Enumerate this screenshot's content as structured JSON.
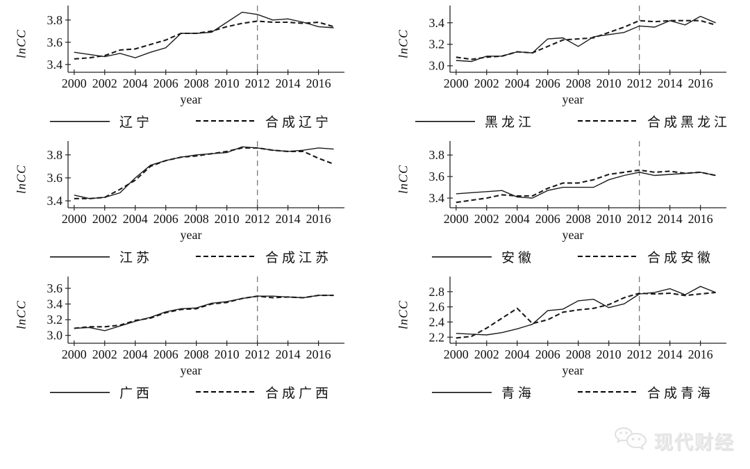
{
  "page": {
    "background": "#ffffff"
  },
  "watermark": {
    "text": "现代财经",
    "icon": "wechat-bubbles-icon",
    "color": "#e7e7e7"
  },
  "chart_data": [
    {
      "id": "liaoning",
      "type": "line",
      "xlabel": "year",
      "ylabel": "lnCC",
      "x": [
        2000,
        2001,
        2002,
        2003,
        2004,
        2005,
        2006,
        2007,
        2008,
        2009,
        2010,
        2011,
        2012,
        2013,
        2014,
        2015,
        2016,
        2017
      ],
      "xticks": [
        2000,
        2002,
        2004,
        2006,
        2008,
        2010,
        2012,
        2014,
        2016
      ],
      "yticks": [
        3.4,
        3.6,
        3.8
      ],
      "xlim": [
        1999.6,
        2017.7
      ],
      "ylim": [
        3.33,
        3.93
      ],
      "vline_x": 2012,
      "grid": false,
      "legend_position": "bottom",
      "series": [
        {
          "name": "辽宁",
          "style": "solid",
          "values": [
            3.51,
            3.49,
            3.47,
            3.5,
            3.46,
            3.51,
            3.55,
            3.68,
            3.68,
            3.69,
            3.78,
            3.87,
            3.85,
            3.8,
            3.81,
            3.78,
            3.74,
            3.73
          ]
        },
        {
          "name": "合成辽宁",
          "style": "dashed",
          "values": [
            3.45,
            3.46,
            3.48,
            3.53,
            3.54,
            3.58,
            3.62,
            3.68,
            3.68,
            3.7,
            3.74,
            3.77,
            3.79,
            3.78,
            3.78,
            3.77,
            3.78,
            3.74
          ]
        }
      ]
    },
    {
      "id": "heilongjiang",
      "type": "line",
      "xlabel": "year",
      "ylabel": "lnCC",
      "x": [
        2000,
        2001,
        2002,
        2003,
        2004,
        2005,
        2006,
        2007,
        2008,
        2009,
        2010,
        2011,
        2012,
        2013,
        2014,
        2015,
        2016,
        2017
      ],
      "xticks": [
        2000,
        2002,
        2004,
        2006,
        2008,
        2010,
        2012,
        2014,
        2016
      ],
      "yticks": [
        3.0,
        3.2,
        3.4
      ],
      "xlim": [
        1999.6,
        2017.7
      ],
      "ylim": [
        2.94,
        3.56
      ],
      "vline_x": 2012,
      "grid": false,
      "legend_position": "bottom",
      "series": [
        {
          "name": "黑龙江",
          "style": "solid",
          "values": [
            3.05,
            3.04,
            3.09,
            3.09,
            3.13,
            3.12,
            3.25,
            3.26,
            3.18,
            3.27,
            3.29,
            3.31,
            3.37,
            3.36,
            3.42,
            3.38,
            3.46,
            3.4
          ]
        },
        {
          "name": "合成黑龙江",
          "style": "dashed",
          "values": [
            3.08,
            3.06,
            3.08,
            3.09,
            3.13,
            3.12,
            3.18,
            3.24,
            3.25,
            3.26,
            3.31,
            3.36,
            3.42,
            3.41,
            3.42,
            3.42,
            3.42,
            3.38
          ]
        }
      ]
    },
    {
      "id": "jiangsu",
      "type": "line",
      "xlabel": "year",
      "ylabel": "lnCC",
      "x": [
        2000,
        2001,
        2002,
        2003,
        2004,
        2005,
        2006,
        2007,
        2008,
        2009,
        2010,
        2011,
        2012,
        2013,
        2014,
        2015,
        2016,
        2017
      ],
      "xticks": [
        2000,
        2002,
        2004,
        2006,
        2008,
        2010,
        2012,
        2014,
        2016
      ],
      "yticks": [
        3.4,
        3.6,
        3.8
      ],
      "xlim": [
        1999.6,
        2017.7
      ],
      "ylim": [
        3.34,
        3.92
      ],
      "vline_x": 2012,
      "grid": false,
      "legend_position": "bottom",
      "series": [
        {
          "name": "江苏",
          "style": "solid",
          "values": [
            3.45,
            3.42,
            3.43,
            3.47,
            3.6,
            3.71,
            3.75,
            3.78,
            3.8,
            3.81,
            3.82,
            3.87,
            3.86,
            3.84,
            3.83,
            3.84,
            3.86,
            3.85
          ]
        },
        {
          "name": "合成江苏",
          "style": "dashed",
          "values": [
            3.42,
            3.42,
            3.43,
            3.5,
            3.58,
            3.7,
            3.75,
            3.78,
            3.79,
            3.81,
            3.83,
            3.86,
            3.86,
            3.84,
            3.83,
            3.83,
            3.77,
            3.72
          ]
        }
      ]
    },
    {
      "id": "anhui",
      "type": "line",
      "xlabel": "year",
      "ylabel": "lnCC",
      "x": [
        2000,
        2001,
        2002,
        2003,
        2004,
        2005,
        2006,
        2007,
        2008,
        2009,
        2010,
        2011,
        2012,
        2013,
        2014,
        2015,
        2016,
        2017
      ],
      "xticks": [
        2000,
        2002,
        2004,
        2006,
        2008,
        2010,
        2012,
        2014,
        2016
      ],
      "yticks": [
        3.4,
        3.6,
        3.8
      ],
      "xlim": [
        1999.6,
        2017.7
      ],
      "ylim": [
        3.31,
        3.93
      ],
      "vline_x": 2012,
      "grid": false,
      "legend_position": "bottom",
      "series": [
        {
          "name": "安徽",
          "style": "solid",
          "values": [
            3.44,
            3.45,
            3.46,
            3.47,
            3.41,
            3.4,
            3.47,
            3.5,
            3.5,
            3.5,
            3.57,
            3.61,
            3.64,
            3.61,
            3.62,
            3.63,
            3.64,
            3.61
          ]
        },
        {
          "name": "合成安徽",
          "style": "dashed",
          "values": [
            3.36,
            3.38,
            3.4,
            3.43,
            3.42,
            3.42,
            3.49,
            3.54,
            3.54,
            3.57,
            3.62,
            3.64,
            3.66,
            3.64,
            3.65,
            3.63,
            3.64,
            3.61
          ]
        }
      ]
    },
    {
      "id": "guangxi",
      "type": "line",
      "xlabel": "year",
      "ylabel": "lnCC",
      "x": [
        2000,
        2001,
        2002,
        2003,
        2004,
        2005,
        2006,
        2007,
        2008,
        2009,
        2010,
        2011,
        2012,
        2013,
        2014,
        2015,
        2016,
        2017
      ],
      "xticks": [
        2000,
        2002,
        2004,
        2006,
        2008,
        2010,
        2012,
        2014,
        2016
      ],
      "yticks": [
        3.0,
        3.2,
        3.4,
        3.6
      ],
      "xlim": [
        1999.6,
        2017.7
      ],
      "ylim": [
        2.9,
        3.75
      ],
      "vline_x": 2012,
      "grid": false,
      "legend_position": "bottom",
      "series": [
        {
          "name": "广西",
          "style": "solid",
          "values": [
            3.09,
            3.1,
            3.06,
            3.12,
            3.18,
            3.23,
            3.3,
            3.34,
            3.35,
            3.41,
            3.43,
            3.47,
            3.5,
            3.5,
            3.49,
            3.48,
            3.51,
            3.51
          ]
        },
        {
          "name": "合成广西",
          "style": "dashed",
          "values": [
            3.09,
            3.11,
            3.11,
            3.13,
            3.19,
            3.22,
            3.29,
            3.33,
            3.34,
            3.4,
            3.42,
            3.47,
            3.5,
            3.48,
            3.49,
            3.48,
            3.51,
            3.51
          ]
        }
      ]
    },
    {
      "id": "qinghai",
      "type": "line",
      "xlabel": "year",
      "ylabel": "lnCC",
      "x": [
        2000,
        2001,
        2002,
        2003,
        2004,
        2005,
        2006,
        2007,
        2008,
        2009,
        2010,
        2011,
        2012,
        2013,
        2014,
        2015,
        2016,
        2017
      ],
      "xticks": [
        2000,
        2002,
        2004,
        2006,
        2008,
        2010,
        2012,
        2014,
        2016
      ],
      "yticks": [
        2.2,
        2.4,
        2.6,
        2.8
      ],
      "xlim": [
        1999.6,
        2017.7
      ],
      "ylim": [
        2.12,
        3.0
      ],
      "vline_x": 2012,
      "grid": false,
      "legend_position": "bottom",
      "series": [
        {
          "name": "青海",
          "style": "solid",
          "values": [
            2.25,
            2.24,
            2.23,
            2.26,
            2.31,
            2.37,
            2.55,
            2.57,
            2.68,
            2.7,
            2.59,
            2.64,
            2.77,
            2.79,
            2.84,
            2.76,
            2.87,
            2.79
          ]
        },
        {
          "name": "合成青海",
          "style": "dashed",
          "values": [
            2.19,
            2.21,
            2.32,
            2.45,
            2.58,
            2.38,
            2.43,
            2.53,
            2.56,
            2.58,
            2.63,
            2.72,
            2.78,
            2.77,
            2.78,
            2.75,
            2.77,
            2.79
          ]
        }
      ]
    }
  ],
  "style": {
    "line_color": "#1a1a1a",
    "vline_color": "#777777",
    "axis_color": "#222222"
  }
}
